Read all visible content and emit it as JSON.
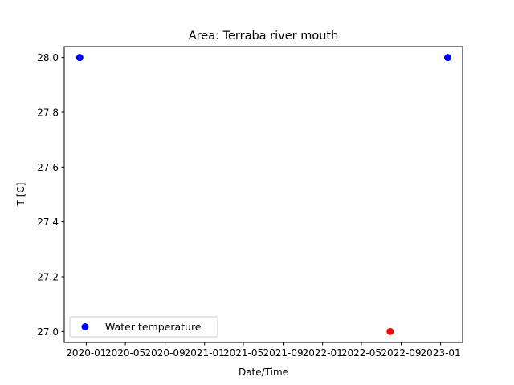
{
  "chart_data": {
    "type": "scatter",
    "title": "Area: Terraba river mouth",
    "xlabel": "Date/Time",
    "ylabel": "T [C]",
    "xlim": [
      "2019-10-25",
      "2023-03-10"
    ],
    "ylim": [
      26.96,
      28.04
    ],
    "x_ticks": [
      "2020-01",
      "2020-05",
      "2020-09",
      "2021-01",
      "2021-05",
      "2021-09",
      "2022-01",
      "2022-05",
      "2022-09",
      "2023-01"
    ],
    "y_ticks": [
      "27.0",
      "27.2",
      "27.4",
      "27.6",
      "27.8",
      "28.0"
    ],
    "legend_position": "lower-left",
    "series": [
      {
        "name": "Water temperature",
        "color": "#0000ff",
        "points": [
          {
            "x": "2019-12-12",
            "y": 28.0,
            "color": "#0000ff"
          },
          {
            "x": "2023-01-23",
            "y": 28.0,
            "color": "#0000ff"
          },
          {
            "x": "2022-07-29",
            "y": 27.0,
            "color": "#ff0000"
          }
        ]
      }
    ]
  }
}
